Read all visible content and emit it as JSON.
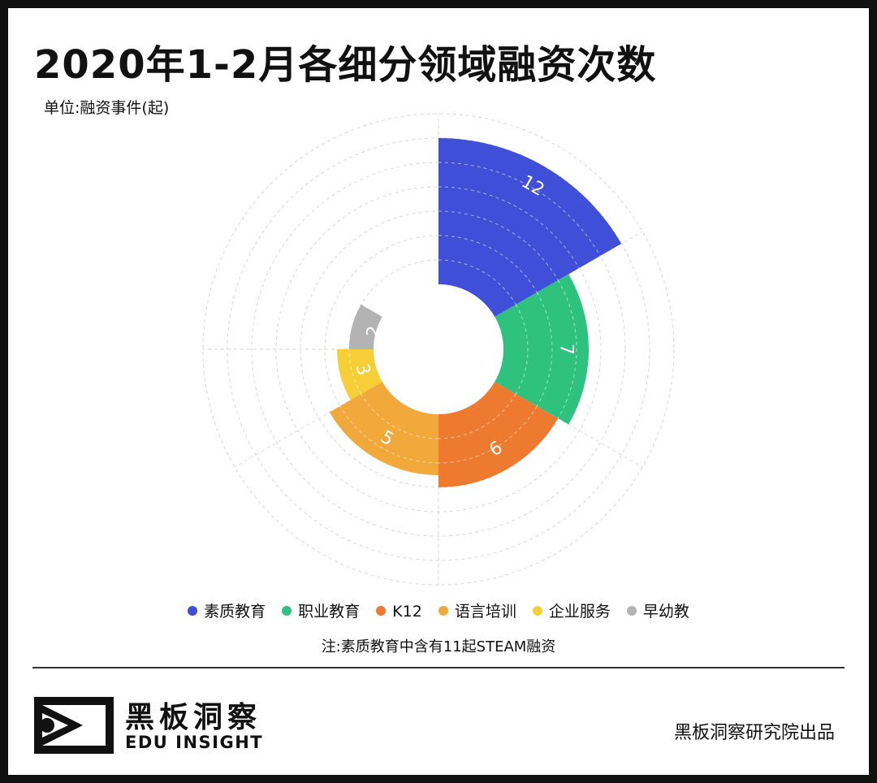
{
  "title": "2020年1-2月各细分领域融资次数",
  "unit": "单位:融资事件(起)",
  "note": "注:素质教育中含有11起STEAM融资",
  "logo": {
    "cn": "黑板洞察",
    "en": "EDU INSIGHT"
  },
  "credit": "黑板洞察研究院出品",
  "chart_data": {
    "type": "nightingale-rose",
    "unit": "起",
    "categories": [
      "素质教育",
      "职业教育",
      "K12",
      "语言培训",
      "企业服务",
      "早幼教"
    ],
    "values": [
      12,
      7,
      6,
      5,
      3,
      2
    ],
    "colors": [
      "#3f4fd8",
      "#2ec27e",
      "#ee7a2f",
      "#f2a93b",
      "#f6cf36",
      "#b3b3b3"
    ],
    "sector_degrees": [
      60,
      60,
      60,
      60,
      30,
      30
    ],
    "rmax": 12,
    "grid": true,
    "grid_rings": 6,
    "legend": "bottom"
  }
}
